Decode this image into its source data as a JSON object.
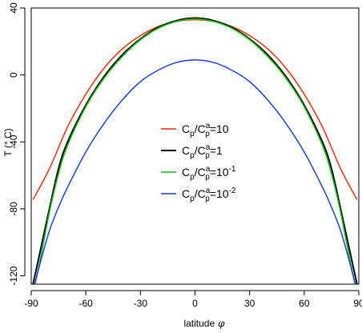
{
  "chart_data": {
    "type": "line",
    "title": "",
    "xlabel": "latitude",
    "xlabel_symbol": "φ",
    "ylabel": "T (° C)",
    "xlim": [
      -90,
      90
    ],
    "ylim": [
      -125,
      40
    ],
    "xticks": [
      -90,
      -60,
      -30,
      0,
      30,
      60,
      90
    ],
    "yticks": [
      -120,
      -80,
      -40,
      0,
      40
    ],
    "legend_position": "center",
    "grid": false,
    "series": [
      {
        "name": "Cp/Cpa=10",
        "legend": {
          "base": "C",
          "sub1": "p",
          "mid": "/C",
          "sup2": "a",
          "sub2": "p",
          "eq": "=10",
          "exp": ""
        },
        "color": "#FF2A00",
        "x": [
          -89,
          -80,
          -70,
          -60,
          -50,
          -40,
          -30,
          -20,
          -10,
          0,
          10,
          20,
          30,
          40,
          50,
          60,
          70,
          80,
          89
        ],
        "y": [
          -74.5,
          -56,
          -31,
          -11.5,
          4,
          15.5,
          23.5,
          29,
          32,
          33,
          32,
          29,
          23.5,
          15.5,
          4,
          -11.5,
          -31,
          -56,
          -74.5
        ]
      },
      {
        "name": "Cp/Cpa=1",
        "legend": {
          "base": "C",
          "sub1": "p",
          "mid": "/C",
          "sup2": "a",
          "sub2": "p",
          "eq": "=1",
          "exp": ""
        },
        "color": "#000000",
        "x": [
          -89,
          -85,
          -80,
          -75,
          -70,
          -60,
          -50,
          -40,
          -30,
          -20,
          -10,
          0,
          10,
          20,
          30,
          40,
          50,
          60,
          70,
          75,
          80,
          85,
          89
        ],
        "y": [
          -125,
          -105,
          -80,
          -56,
          -40,
          -18,
          -1,
          12,
          21.5,
          28.5,
          32.5,
          34,
          32.5,
          28.5,
          21.5,
          12,
          -1,
          -18,
          -40,
          -56,
          -80,
          -105,
          -125
        ],
        "width": 2
      },
      {
        "name": "Cp/Cpa=10^-1",
        "legend": {
          "base": "C",
          "sub1": "p",
          "mid": "/C",
          "sup2": "a",
          "sub2": "p",
          "eq": "=10",
          "exp": "-1"
        },
        "color": "#00CC00",
        "x": [
          -88,
          -85,
          -80,
          -75,
          -70,
          -60,
          -50,
          -40,
          -30,
          -20,
          -10,
          0,
          10,
          20,
          30,
          40,
          50,
          60,
          70,
          75,
          80,
          85,
          88
        ],
        "y": [
          -125,
          -110,
          -82,
          -59,
          -42,
          -19,
          -2,
          11,
          21,
          28,
          32,
          33.5,
          32,
          28,
          21,
          11,
          -2,
          -19,
          -42,
          -59,
          -82,
          -110,
          -125
        ]
      },
      {
        "name": "Cp/Cpa=10^-2",
        "legend": {
          "base": "C",
          "sub1": "p",
          "mid": "/C",
          "sup2": "a",
          "sub2": "p",
          "eq": "=10",
          "exp": "-2"
        },
        "color": "#1A3CFF",
        "x": [
          -88,
          -85,
          -80,
          -75,
          -70,
          -60,
          -50,
          -40,
          -30,
          -20,
          -10,
          0,
          10,
          20,
          30,
          40,
          50,
          60,
          70,
          75,
          80,
          85,
          88
        ],
        "y": [
          -125,
          -112,
          -93,
          -79,
          -67,
          -46,
          -29,
          -15,
          -4,
          3,
          7.5,
          9,
          7.5,
          3,
          -4,
          -15,
          -29,
          -46,
          -67,
          -79,
          -93,
          -112,
          -125
        ]
      }
    ]
  }
}
